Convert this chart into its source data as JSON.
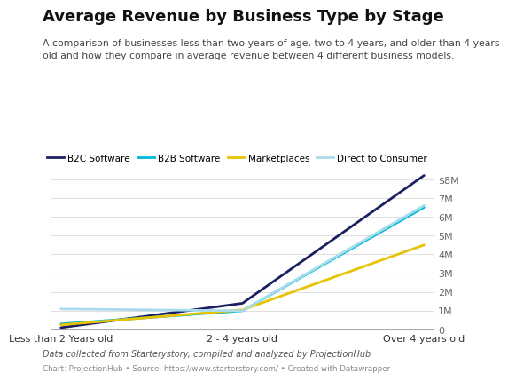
{
  "title": "Average Revenue by Business Type by Stage",
  "subtitle": "A comparison of businesses less than two years of age, two to 4 years, and older than 4 years\nold and how they compare in average revenue between 4 different business models.",
  "x_labels": [
    "Less than 2 Years old",
    "2 - 4 years old",
    "Over 4 years old"
  ],
  "series": [
    {
      "name": "B2C Software",
      "color": "#1a2060",
      "values": [
        100000,
        1400000,
        8200000
      ],
      "linewidth": 2.0
    },
    {
      "name": "B2B Software",
      "color": "#00b8d8",
      "values": [
        300000,
        1000000,
        6500000
      ],
      "linewidth": 2.0
    },
    {
      "name": "Marketplaces",
      "color": "#e8c300",
      "values": [
        250000,
        1050000,
        4500000
      ],
      "linewidth": 2.0
    },
    {
      "name": "Direct to Consumer",
      "color": "#a8dcea",
      "values": [
        1100000,
        1000000,
        6600000
      ],
      "linewidth": 2.0
    }
  ],
  "ylim": [
    0,
    9000000
  ],
  "yticks": [
    0,
    1000000,
    2000000,
    3000000,
    4000000,
    5000000,
    6000000,
    7000000,
    8000000
  ],
  "ytick_labels": [
    "0",
    "1M",
    "2M",
    "3M",
    "4M",
    "5M",
    "6M",
    "7M",
    "$8M"
  ],
  "footnote1": "Data collected from Starterystory, compiled and analyzed by ProjectionHub",
  "footnote2": "Chart: ProjectionHub • Source: https://www.starterstory.com/ • Created with Datawrapper",
  "bg_color": "#ffffff",
  "grid_color": "#e0e0e0"
}
